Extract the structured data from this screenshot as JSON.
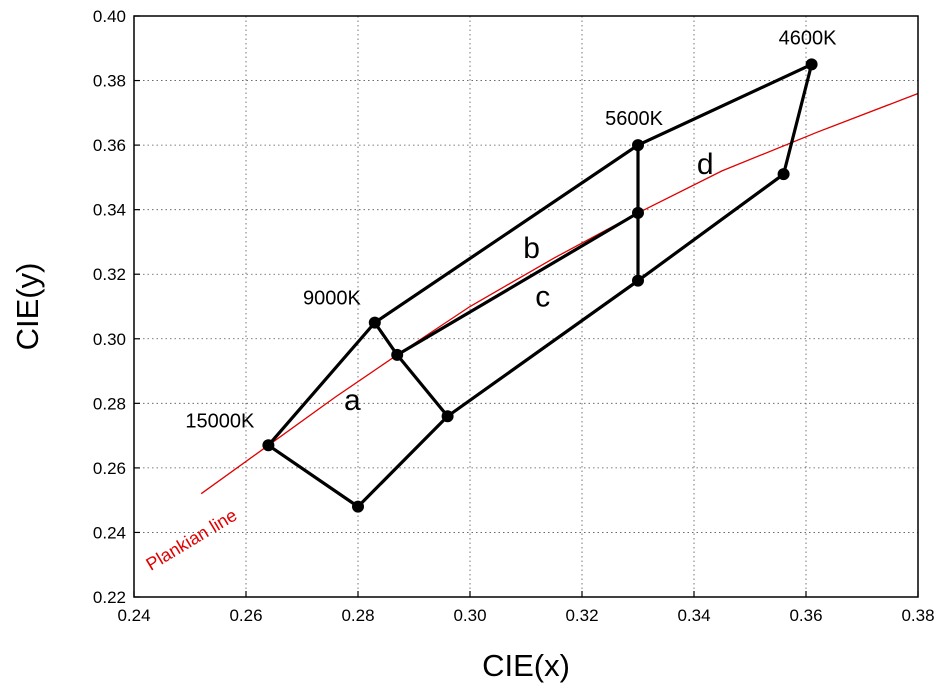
{
  "chart_data": {
    "type": "scatter",
    "title": "",
    "xlabel": "CIE(x)",
    "ylabel": "CIE(y)",
    "xlim": [
      0.24,
      0.38
    ],
    "ylim": [
      0.22,
      0.4
    ],
    "x_ticks": [
      "0.24",
      "0.26",
      "0.28",
      "0.30",
      "0.32",
      "0.34",
      "0.36",
      "0.38"
    ],
    "y_ticks": [
      "0.22",
      "0.24",
      "0.26",
      "0.28",
      "0.30",
      "0.32",
      "0.34",
      "0.36",
      "0.38",
      "0.40"
    ],
    "grid": true,
    "grid_style": "dotted",
    "points": [
      {
        "x": 0.264,
        "y": 0.267
      },
      {
        "x": 0.28,
        "y": 0.248
      },
      {
        "x": 0.283,
        "y": 0.305
      },
      {
        "x": 0.287,
        "y": 0.295
      },
      {
        "x": 0.296,
        "y": 0.276
      },
      {
        "x": 0.33,
        "y": 0.36
      },
      {
        "x": 0.33,
        "y": 0.339
      },
      {
        "x": 0.33,
        "y": 0.318
      },
      {
        "x": 0.356,
        "y": 0.351
      },
      {
        "x": 0.361,
        "y": 0.385
      }
    ],
    "edges": [
      [
        [
          0.264,
          0.267
        ],
        [
          0.283,
          0.305
        ]
      ],
      [
        [
          0.264,
          0.267
        ],
        [
          0.28,
          0.248
        ]
      ],
      [
        [
          0.28,
          0.248
        ],
        [
          0.296,
          0.276
        ]
      ],
      [
        [
          0.283,
          0.305
        ],
        [
          0.287,
          0.295
        ]
      ],
      [
        [
          0.287,
          0.295
        ],
        [
          0.296,
          0.276
        ]
      ],
      [
        [
          0.283,
          0.305
        ],
        [
          0.33,
          0.36
        ]
      ],
      [
        [
          0.33,
          0.36
        ],
        [
          0.361,
          0.385
        ]
      ],
      [
        [
          0.361,
          0.385
        ],
        [
          0.356,
          0.351
        ]
      ],
      [
        [
          0.356,
          0.351
        ],
        [
          0.33,
          0.318
        ]
      ],
      [
        [
          0.296,
          0.276
        ],
        [
          0.33,
          0.318
        ]
      ],
      [
        [
          0.33,
          0.36
        ],
        [
          0.33,
          0.339
        ]
      ],
      [
        [
          0.33,
          0.339
        ],
        [
          0.33,
          0.318
        ]
      ],
      [
        [
          0.287,
          0.295
        ],
        [
          0.33,
          0.339
        ]
      ]
    ],
    "plankian_line": {
      "name": "Plankian line",
      "color": "#e00000",
      "x": [
        0.252,
        0.264,
        0.276,
        0.287,
        0.3,
        0.315,
        0.33,
        0.345,
        0.362,
        0.38
      ],
      "y": [
        0.252,
        0.267,
        0.282,
        0.295,
        0.31,
        0.325,
        0.339,
        0.352,
        0.364,
        0.376
      ]
    },
    "annotations": [
      {
        "text": "15000K",
        "x": 0.264,
        "y": 0.267,
        "anchor": "above-left"
      },
      {
        "text": "9000K",
        "x": 0.283,
        "y": 0.305,
        "anchor": "above-left"
      },
      {
        "text": "5600K",
        "x": 0.33,
        "y": 0.36,
        "anchor": "above"
      },
      {
        "text": "4600K",
        "x": 0.361,
        "y": 0.385,
        "anchor": "above"
      }
    ],
    "region_labels": [
      {
        "text": "a",
        "x": 0.279,
        "y": 0.278
      },
      {
        "text": "b",
        "x": 0.311,
        "y": 0.325
      },
      {
        "text": "c",
        "x": 0.313,
        "y": 0.31
      },
      {
        "text": "d",
        "x": 0.342,
        "y": 0.351
      }
    ],
    "line_color": "#000000",
    "point_color": "#000000"
  }
}
